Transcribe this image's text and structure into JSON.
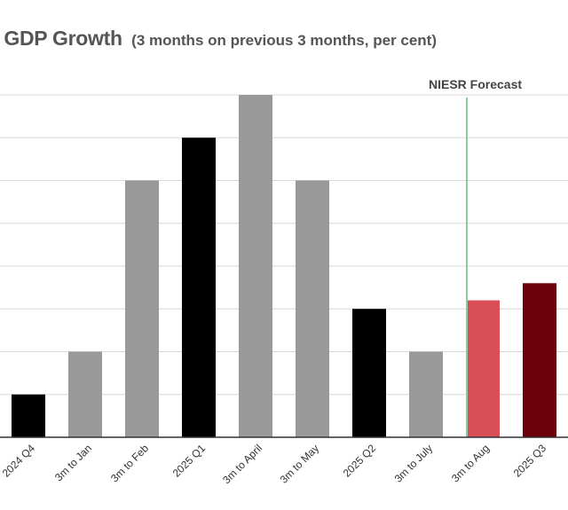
{
  "chart_data": {
    "type": "bar",
    "title": "K GDP Growth",
    "subtitle": "(3 months on previous 3 months, per cent)",
    "categories": [
      "2024 Q4",
      "3m to Jan",
      "3m to Feb",
      "2025 Q1",
      "3m to April",
      "3m to May",
      "2025 Q2",
      "3m to July",
      "3m to Aug",
      "2025 Q3"
    ],
    "values": [
      0.1,
      0.2,
      0.6,
      0.7,
      0.8,
      0.6,
      0.3,
      0.2,
      0.32,
      0.36
    ],
    "colors": [
      "#000000",
      "#999999",
      "#999999",
      "#000000",
      "#999999",
      "#999999",
      "#000000",
      "#999999",
      "#d94f57",
      "#6b0009"
    ],
    "ylim": [
      0,
      0.8
    ],
    "gridlines": [
      0.1,
      0.2,
      0.3,
      0.4,
      0.5,
      0.6,
      0.7,
      0.8
    ],
    "grid": true,
    "annotation": {
      "label": "NIESR Forecast",
      "between": [
        "3m to July",
        "3m to Aug"
      ],
      "line_color": "#8fc9a3"
    },
    "axis_color": "#333333",
    "grid_color": "#d9d9d9"
  }
}
